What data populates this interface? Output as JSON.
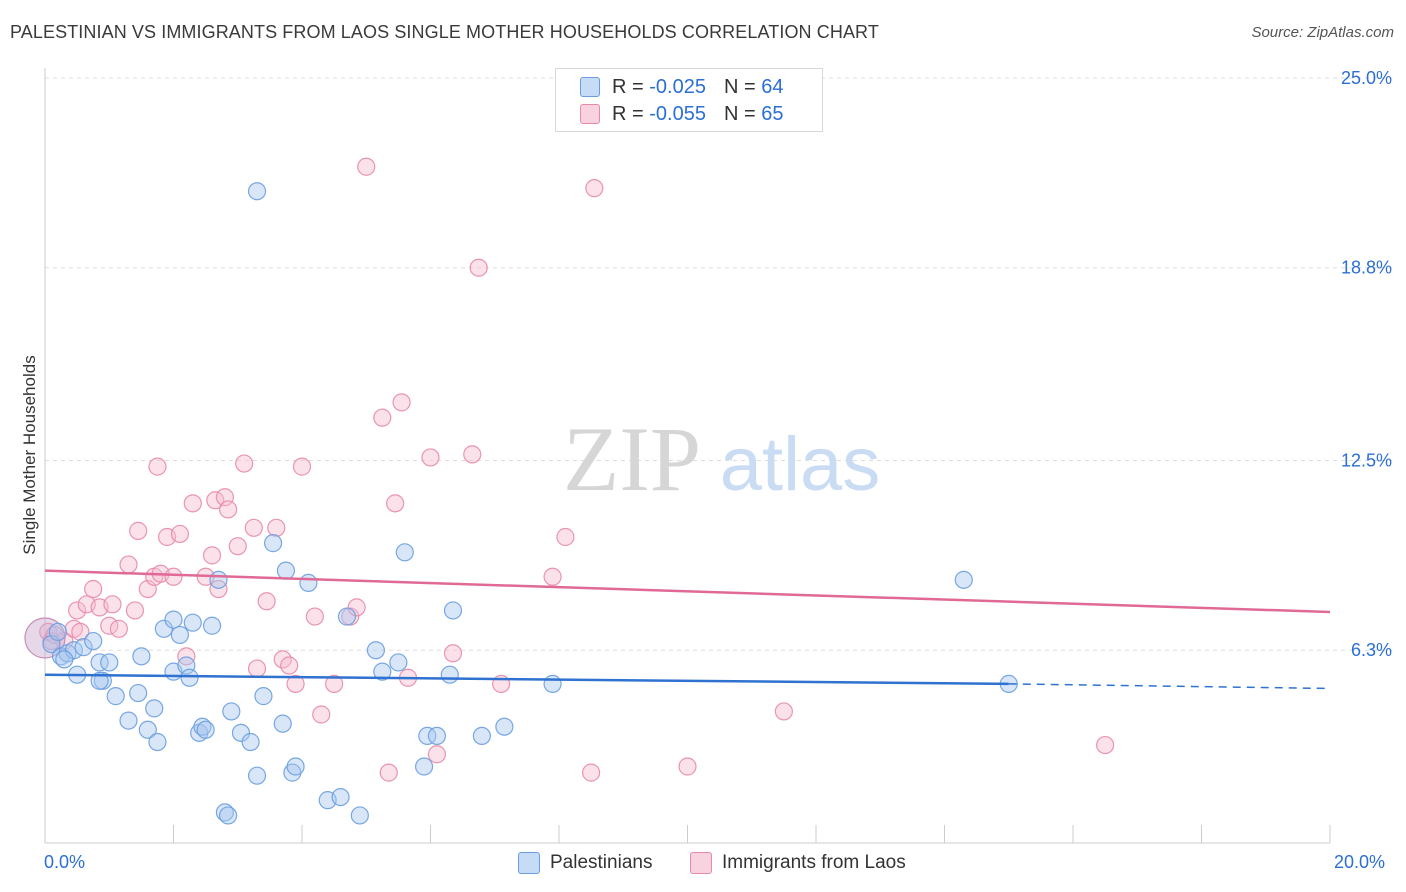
{
  "header": {
    "title": "PALESTINIAN VS IMMIGRANTS FROM LAOS SINGLE MOTHER HOUSEHOLDS CORRELATION CHART",
    "source": "Source: ZipAtlas.com"
  },
  "watermark": {
    "zip": "ZIP",
    "atlas": "atlas"
  },
  "legend": {
    "rows": [
      {
        "r_label": "R =",
        "r_value": "-0.025",
        "n_label": "N =",
        "n_value": "64"
      },
      {
        "r_label": "R =",
        "r_value": "-0.055",
        "n_label": "N =",
        "n_value": "65"
      }
    ]
  },
  "colors": {
    "blue_fill": "#a8c8f0",
    "blue_stroke": "#6a9ee0",
    "blue_line": "#2f72d0",
    "pink_fill": "#f6bdd0",
    "pink_stroke": "#e88aaa",
    "pink_line": "#e06a95",
    "tick_text": "#2b6fd6",
    "grid": "#dddddd"
  },
  "chart_data": {
    "type": "scatter",
    "title": "PALESTINIAN VS IMMIGRANTS FROM LAOS SINGLE MOTHER HOUSEHOLDS CORRELATION CHART",
    "xlabel": "",
    "ylabel": "Single Mother Households",
    "xlim": [
      0,
      20
    ],
    "ylim": [
      0,
      25
    ],
    "x_tick_labels": [
      "0.0%",
      "20.0%"
    ],
    "y_ticks": [
      6.3,
      12.5,
      18.8,
      25.0
    ],
    "y_tick_labels": [
      "6.3%",
      "12.5%",
      "18.8%",
      "25.0%"
    ],
    "grid": true,
    "legend_position": "top-center",
    "series": [
      {
        "name": "Palestinians",
        "color": "#6a9ee0",
        "r": -0.025,
        "n": 64,
        "trend": {
          "x": [
            0,
            15.0
          ],
          "y": [
            5.5,
            5.2
          ],
          "dashed_to_x": 20,
          "dashed_y_end": 5.05
        },
        "points": [
          [
            0.1,
            6.5
          ],
          [
            0.25,
            6.1
          ],
          [
            0.35,
            6.2
          ],
          [
            0.45,
            6.3
          ],
          [
            0.3,
            6.0
          ],
          [
            0.5,
            5.5
          ],
          [
            0.6,
            6.4
          ],
          [
            0.75,
            6.6
          ],
          [
            0.85,
            5.9
          ],
          [
            1.0,
            5.9
          ],
          [
            1.5,
            6.1
          ],
          [
            0.9,
            5.3
          ],
          [
            0.85,
            5.3
          ],
          [
            1.1,
            4.8
          ],
          [
            1.45,
            4.9
          ],
          [
            1.3,
            4.0
          ],
          [
            1.7,
            4.4
          ],
          [
            1.6,
            3.7
          ],
          [
            1.75,
            3.3
          ],
          [
            1.85,
            7.0
          ],
          [
            2.0,
            5.6
          ],
          [
            2.1,
            6.8
          ],
          [
            2.2,
            5.8
          ],
          [
            2.25,
            5.4
          ],
          [
            2.4,
            3.6
          ],
          [
            2.45,
            3.8
          ],
          [
            2.5,
            3.7
          ],
          [
            2.6,
            7.1
          ],
          [
            2.7,
            8.6
          ],
          [
            2.9,
            4.3
          ],
          [
            3.05,
            3.6
          ],
          [
            3.2,
            3.3
          ],
          [
            3.3,
            2.2
          ],
          [
            3.4,
            4.8
          ],
          [
            3.55,
            9.8
          ],
          [
            3.7,
            3.9
          ],
          [
            3.75,
            8.9
          ],
          [
            3.85,
            2.3
          ],
          [
            3.9,
            2.5
          ],
          [
            4.1,
            8.5
          ],
          [
            4.4,
            1.4
          ],
          [
            4.6,
            1.5
          ],
          [
            4.7,
            7.4
          ],
          [
            4.9,
            0.9
          ],
          [
            5.15,
            6.3
          ],
          [
            5.25,
            5.6
          ],
          [
            5.5,
            5.9
          ],
          [
            5.9,
            2.5
          ],
          [
            5.95,
            3.5
          ],
          [
            6.1,
            3.5
          ],
          [
            6.3,
            5.5
          ],
          [
            6.35,
            7.6
          ],
          [
            6.8,
            3.5
          ],
          [
            7.15,
            3.8
          ],
          [
            7.9,
            5.2
          ],
          [
            3.3,
            21.3
          ],
          [
            5.6,
            9.5
          ],
          [
            2.8,
            1.0
          ],
          [
            2.85,
            0.9
          ],
          [
            2.0,
            7.3
          ],
          [
            2.3,
            7.2
          ],
          [
            0.2,
            6.9
          ],
          [
            14.3,
            8.6
          ],
          [
            15.0,
            5.2
          ]
        ]
      },
      {
        "name": "Immigrants from Laos",
        "color": "#e88aaa",
        "r": -0.055,
        "n": 65,
        "trend": {
          "x": [
            0,
            20
          ],
          "y": [
            8.9,
            7.55
          ]
        },
        "points": [
          [
            0.05,
            6.9
          ],
          [
            0.1,
            6.6
          ],
          [
            0.15,
            6.8
          ],
          [
            0.3,
            6.6
          ],
          [
            0.45,
            7.0
          ],
          [
            0.5,
            7.6
          ],
          [
            0.55,
            6.9
          ],
          [
            0.65,
            7.8
          ],
          [
            0.75,
            8.3
          ],
          [
            0.85,
            7.7
          ],
          [
            1.0,
            7.1
          ],
          [
            1.05,
            7.8
          ],
          [
            1.15,
            7.0
          ],
          [
            1.3,
            9.1
          ],
          [
            1.4,
            7.6
          ],
          [
            1.45,
            10.2
          ],
          [
            1.6,
            8.3
          ],
          [
            1.7,
            8.7
          ],
          [
            1.75,
            12.3
          ],
          [
            1.8,
            8.8
          ],
          [
            1.9,
            10.0
          ],
          [
            2.0,
            8.7
          ],
          [
            2.1,
            10.1
          ],
          [
            2.2,
            6.1
          ],
          [
            2.3,
            11.1
          ],
          [
            2.5,
            8.7
          ],
          [
            2.6,
            9.4
          ],
          [
            2.65,
            11.2
          ],
          [
            2.7,
            8.3
          ],
          [
            2.8,
            11.3
          ],
          [
            2.85,
            10.9
          ],
          [
            3.0,
            9.7
          ],
          [
            3.1,
            12.4
          ],
          [
            3.25,
            10.3
          ],
          [
            3.3,
            5.7
          ],
          [
            3.45,
            7.9
          ],
          [
            3.6,
            10.3
          ],
          [
            3.7,
            6.0
          ],
          [
            3.8,
            5.8
          ],
          [
            3.9,
            5.2
          ],
          [
            4.0,
            12.3
          ],
          [
            4.2,
            7.4
          ],
          [
            4.3,
            4.2
          ],
          [
            4.5,
            5.2
          ],
          [
            4.75,
            7.4
          ],
          [
            4.85,
            7.7
          ],
          [
            5.0,
            22.1
          ],
          [
            5.25,
            13.9
          ],
          [
            5.35,
            2.3
          ],
          [
            5.45,
            11.1
          ],
          [
            5.55,
            14.4
          ],
          [
            5.65,
            5.4
          ],
          [
            6.0,
            12.6
          ],
          [
            6.1,
            2.9
          ],
          [
            6.35,
            6.2
          ],
          [
            6.65,
            12.7
          ],
          [
            6.75,
            18.8
          ],
          [
            7.1,
            5.2
          ],
          [
            7.9,
            8.7
          ],
          [
            8.1,
            10.0
          ],
          [
            8.55,
            21.4
          ],
          [
            8.5,
            2.3
          ],
          [
            10.0,
            2.5
          ],
          [
            11.5,
            4.3
          ],
          [
            16.5,
            3.2
          ]
        ]
      }
    ]
  },
  "bottom_legend": [
    {
      "label": "Palestinians"
    },
    {
      "label": "Immigrants from Laos"
    }
  ]
}
